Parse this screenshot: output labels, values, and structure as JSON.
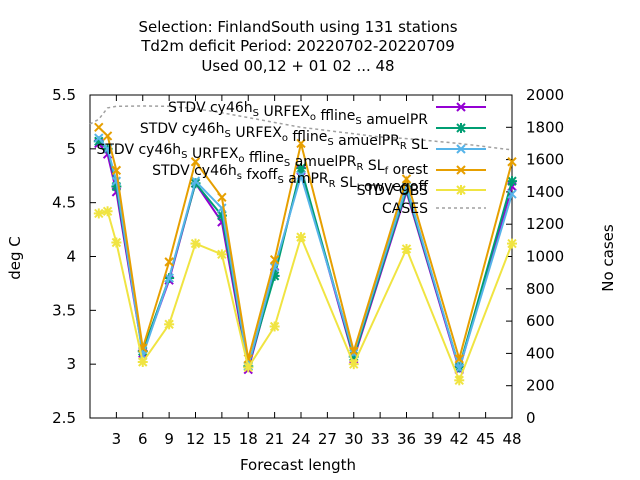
{
  "chart_data": {
    "type": "line",
    "title_lines": [
      "Selection: FinlandSouth using   131 stations",
      "Td2m deficit   Period: 20220702-20220709",
      "Used  00,12  + 01 02 ... 48"
    ],
    "xlabel": "Forecast length",
    "ylabel": "deg C",
    "y2label": "No cases",
    "xlim": [
      0,
      48
    ],
    "ylim": [
      2.5,
      5.5
    ],
    "y2lim": [
      0,
      2000
    ],
    "xticks": [
      "3",
      "6",
      "9",
      "12",
      "15",
      "18",
      "21",
      "24",
      "27",
      "30",
      "33",
      "36",
      "39",
      "42",
      "45",
      "48"
    ],
    "xtick_values": [
      3,
      6,
      9,
      12,
      15,
      18,
      21,
      24,
      27,
      30,
      33,
      36,
      39,
      42,
      45,
      48
    ],
    "yticks": [
      "2.5",
      "3",
      "3.5",
      "4",
      "4.5",
      "5",
      "5.5"
    ],
    "ytick_values": [
      2.5,
      3,
      3.5,
      4,
      4.5,
      5,
      5.5
    ],
    "y2ticks": [
      "0",
      "200",
      "400",
      "600",
      "800",
      "1000",
      "1200",
      "1400",
      "1600",
      "1800",
      "2000"
    ],
    "y2tick_values": [
      0,
      200,
      400,
      600,
      800,
      1000,
      1200,
      1400,
      1600,
      1800,
      2000
    ],
    "legend_position": "top-right",
    "x": [
      1,
      2,
      3,
      6,
      9,
      12,
      15,
      18,
      21,
      24,
      30,
      36,
      42,
      48
    ],
    "series": [
      {
        "name": "STDV cy46h_S URFEX_o ffline_S amuelPR",
        "legend_parts": [
          [
            "STDV cy46h",
            ""
          ],
          [
            "S",
            "sub"
          ],
          [
            " URFEX",
            ""
          ],
          [
            "o",
            "sub"
          ],
          [
            " ffline",
            ""
          ],
          [
            "S",
            "sub"
          ],
          [
            " amuelPR",
            ""
          ]
        ],
        "color": "#9400d3",
        "marker": "x",
        "values": [
          5.05,
          4.95,
          4.6,
          3.1,
          3.78,
          4.68,
          4.32,
          2.95,
          3.85,
          4.8,
          3.05,
          4.6,
          2.95,
          4.65
        ]
      },
      {
        "name": "STDV cy46h_S URFEX_o ffline_S amuelPR_R SL",
        "legend_parts": [
          [
            "STDV cy46h",
            ""
          ],
          [
            "S",
            "sub"
          ],
          [
            " URFEX",
            ""
          ],
          [
            "o",
            "sub"
          ],
          [
            " ffline",
            ""
          ],
          [
            "S",
            "sub"
          ],
          [
            " amuelPR",
            ""
          ],
          [
            "R",
            "sub"
          ],
          [
            " SL",
            ""
          ]
        ],
        "color": "#009e73",
        "marker": "asterisk",
        "values": [
          5.07,
          5.0,
          4.65,
          3.12,
          3.8,
          4.68,
          4.38,
          2.98,
          3.82,
          4.82,
          3.07,
          4.62,
          2.97,
          4.7
        ]
      },
      {
        "name": "STDV cy46h_S URFEX_o ffline_S amuelPR_R SL_f orest",
        "legend_parts": [
          [
            "STDV cy46h",
            ""
          ],
          [
            "S",
            "sub"
          ],
          [
            " URFEX",
            ""
          ],
          [
            "o",
            "sub"
          ],
          [
            " ffline",
            ""
          ],
          [
            "S",
            "sub"
          ],
          [
            " amuelPR",
            ""
          ],
          [
            "R",
            "sub"
          ],
          [
            " SL",
            ""
          ],
          [
            "f",
            "sub"
          ],
          [
            " orest",
            ""
          ]
        ],
        "color": "#56b4e9",
        "marker": "x",
        "values": [
          5.1,
          5.0,
          4.7,
          3.08,
          3.8,
          4.7,
          4.45,
          2.98,
          3.9,
          4.75,
          3.1,
          4.65,
          2.96,
          4.58
        ]
      },
      {
        "name": "STDV cy46h_s fxoff_S amPR_R SL_l owvegoff",
        "legend_parts": [
          [
            "STDV cy46h",
            ""
          ],
          [
            "s",
            "sub"
          ],
          [
            " fxoff",
            ""
          ],
          [
            "S",
            "sub"
          ],
          [
            " amPR",
            ""
          ],
          [
            "R",
            "sub"
          ],
          [
            " SL",
            ""
          ],
          [
            "l",
            "sub"
          ],
          [
            " owvegoff",
            ""
          ]
        ],
        "color": "#e69f00",
        "marker": "x",
        "values": [
          5.2,
          5.12,
          4.8,
          3.15,
          3.95,
          4.88,
          4.55,
          3.05,
          3.97,
          5.05,
          3.12,
          4.72,
          3.05,
          4.88
        ]
      },
      {
        "name": "STDV OBS",
        "legend_parts": [
          [
            "STDV OBS",
            ""
          ]
        ],
        "color": "#f0e442",
        "marker": "asterisk",
        "values": [
          4.4,
          4.42,
          4.13,
          3.02,
          3.37,
          4.12,
          4.02,
          2.97,
          3.35,
          4.18,
          3.0,
          4.07,
          2.85,
          4.12
        ]
      }
    ],
    "cases": {
      "name": "CASES",
      "color": "#a0a0a0",
      "dash": true,
      "axis": "y2",
      "x": [
        0,
        1,
        2,
        3,
        6,
        9,
        12,
        15,
        18,
        21,
        24,
        27,
        30,
        33,
        36,
        39,
        42,
        45,
        48
      ],
      "values": [
        1820,
        1850,
        1920,
        1930,
        1932,
        1930,
        1915,
        1890,
        1860,
        1830,
        1800,
        1780,
        1760,
        1740,
        1730,
        1715,
        1700,
        1680,
        1660
      ]
    }
  }
}
